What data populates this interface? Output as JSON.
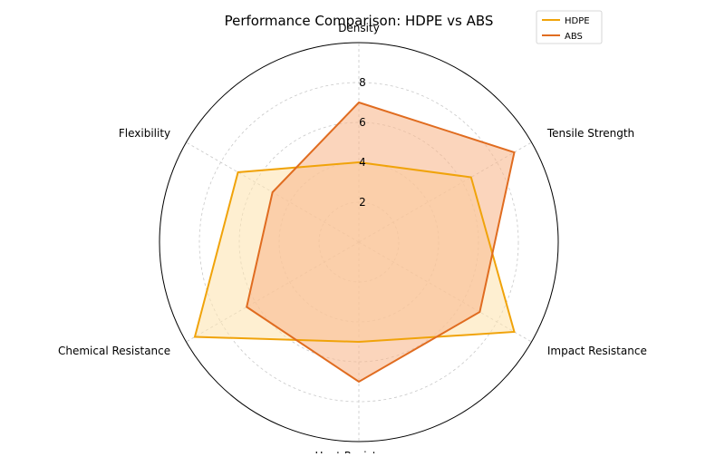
{
  "chart_data": {
    "type": "radar",
    "title": "Performance Comparison: HDPE vs ABS",
    "axes": [
      "Density",
      "Tensile Strength",
      "Impact Resistance",
      "Heat Resistance",
      "Chemical Resistance",
      "Flexibility"
    ],
    "radial_ticks": [
      2,
      4,
      6,
      8
    ],
    "rlim": [
      0,
      10
    ],
    "grid": true,
    "legend_position": "top-right",
    "series": [
      {
        "name": "HDPE",
        "color": "#f0a30a",
        "fill": "#fde5b3",
        "values": [
          4,
          6.5,
          9,
          5,
          9.5,
          7
        ]
      },
      {
        "name": "ABS",
        "color": "#e06c20",
        "fill": "#f9b98f",
        "values": [
          7,
          9,
          7,
          7,
          6.5,
          5
        ]
      }
    ]
  }
}
